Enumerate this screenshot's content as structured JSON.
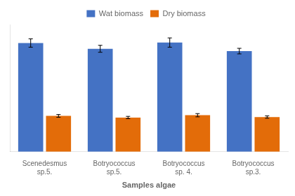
{
  "chart_data": {
    "type": "bar",
    "xlabel": "Samples algae",
    "categories": [
      "Scenedesmus\nsp.5.",
      "Botryococcus\nsp.5.",
      "Botryococcus\nsp. 4.",
      "Botryococcus\nsp.3."
    ],
    "series": [
      {
        "name": "Wat biomass",
        "color": "#4472C4",
        "values": [
          4.7,
          4.45,
          4.72,
          4.35
        ],
        "errors": [
          0.18,
          0.15,
          0.2,
          0.12
        ]
      },
      {
        "name": "Dry biomass",
        "color": "#E36C09",
        "values": [
          1.55,
          1.48,
          1.58,
          1.5
        ],
        "errors": [
          0.06,
          0.05,
          0.07,
          0.05
        ]
      }
    ],
    "ylim": [
      0,
      5.5
    ],
    "yticks": [],
    "grid": false,
    "legend": "top",
    "tick_labels": "x"
  }
}
